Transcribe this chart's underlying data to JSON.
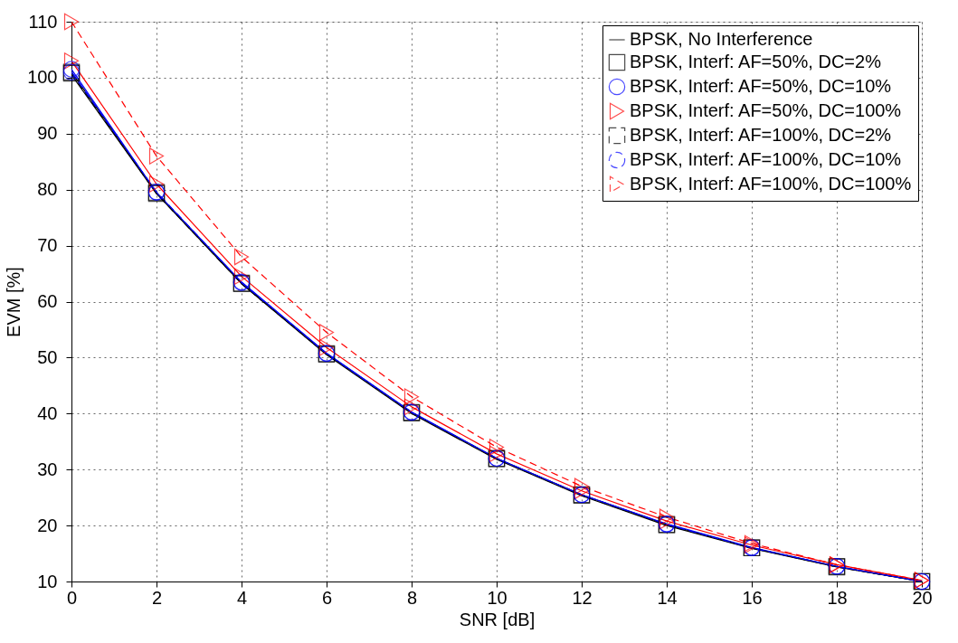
{
  "chart_data": {
    "type": "line",
    "xlabel": "SNR [dB]",
    "ylabel": "EVM [%]",
    "x": [
      0,
      2,
      4,
      6,
      8,
      10,
      12,
      14,
      16,
      18,
      20
    ],
    "xlim": [
      0,
      20
    ],
    "xticks": [
      0,
      2,
      4,
      6,
      8,
      10,
      12,
      14,
      16,
      18,
      20
    ],
    "ylim": [
      10,
      110
    ],
    "yticks": [
      10,
      20,
      30,
      40,
      50,
      60,
      70,
      80,
      90,
      100,
      110
    ],
    "grid": true,
    "legend": "top right",
    "series": [
      {
        "name": "BPSK, No Interference",
        "color": "#000000",
        "marker": "none",
        "line_style": "solid",
        "values": [
          100.5,
          79.3,
          63.2,
          50.5,
          40.0,
          31.8,
          25.3,
          20.0,
          15.9,
          12.6,
          10.0
        ]
      },
      {
        "name": "BPSK, Interf: AF=50%, DC=2%",
        "color": "#000000",
        "marker": "square",
        "line_style": "solid",
        "values": [
          101,
          79.5,
          63.3,
          50.7,
          40.2,
          32,
          25.5,
          20.2,
          16,
          12.7,
          10
        ]
      },
      {
        "name": "BPSK, Interf: AF=50%, DC=10%",
        "color": "#0000ff",
        "marker": "circle",
        "line_style": "solid",
        "values": [
          101.5,
          79.5,
          63.5,
          50.8,
          40.3,
          32,
          25.5,
          20.3,
          16.1,
          12.7,
          10
        ]
      },
      {
        "name": "BPSK, Interf: AF=50%, DC=100%",
        "color": "#ff0000",
        "marker": "triangle",
        "line_style": "solid",
        "values": [
          103,
          81,
          64.5,
          51.8,
          41.2,
          32.8,
          26.2,
          20.8,
          16.5,
          13,
          10.2
        ]
      },
      {
        "name": "BPSK, Interf: AF=100%, DC=2%",
        "color": "#000000",
        "marker": "square",
        "line_style": "dashed",
        "values": [
          100.8,
          79.3,
          63.2,
          50.6,
          40.1,
          31.9,
          25.4,
          20.1,
          16,
          12.6,
          10
        ]
      },
      {
        "name": "BPSK, Interf: AF=100%, DC=10%",
        "color": "#0000ff",
        "marker": "circle",
        "line_style": "dashed",
        "values": [
          101,
          79.6,
          63.4,
          50.7,
          40.2,
          32,
          25.5,
          20.2,
          16,
          12.7,
          10
        ]
      },
      {
        "name": "BPSK, Interf: AF=100%, DC=100%",
        "color": "#ff0000",
        "marker": "triangle",
        "line_style": "dashed",
        "values": [
          110,
          86,
          68,
          54.5,
          43,
          34,
          27,
          21.5,
          16.8,
          13,
          10.2
        ]
      }
    ]
  }
}
